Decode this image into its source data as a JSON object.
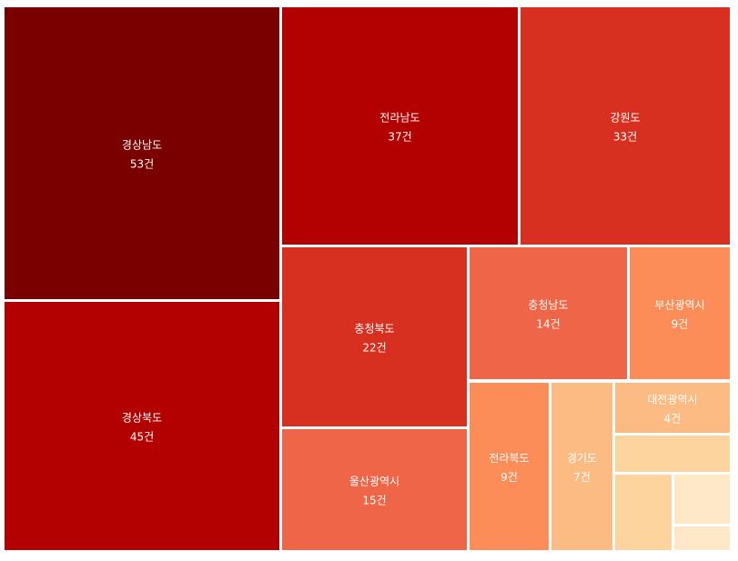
{
  "chart_data": {
    "type": "treemap",
    "title": "",
    "unit_suffix": "건",
    "items": [
      {
        "name": "경상남도",
        "value": 53,
        "color": "#7a0000"
      },
      {
        "name": "경상북도",
        "value": 45,
        "color": "#b30000"
      },
      {
        "name": "전라남도",
        "value": 37,
        "color": "#b30000"
      },
      {
        "name": "강원도",
        "value": 33,
        "color": "#d73020"
      },
      {
        "name": "충청북도",
        "value": 22,
        "color": "#d73020"
      },
      {
        "name": "울산광역시",
        "value": 15,
        "color": "#ef6548"
      },
      {
        "name": "충청남도",
        "value": 14,
        "color": "#ef6548"
      },
      {
        "name": "부산광역시",
        "value": 9,
        "color": "#fc8d59"
      },
      {
        "name": "전라북도",
        "value": 9,
        "color": "#fc8d59"
      },
      {
        "name": "경기도",
        "value": 7,
        "color": "#fdbb84"
      },
      {
        "name": "대전광역시",
        "value": 4,
        "color": "#fdbb84"
      },
      {
        "name": "",
        "value": 3,
        "color": "#fdd49e"
      },
      {
        "name": "",
        "value": 3,
        "color": "#fdd49e"
      },
      {
        "name": "",
        "value": 2,
        "color": "#fee8c8"
      },
      {
        "name": "",
        "value": 1,
        "color": "#fee8c8"
      }
    ]
  }
}
